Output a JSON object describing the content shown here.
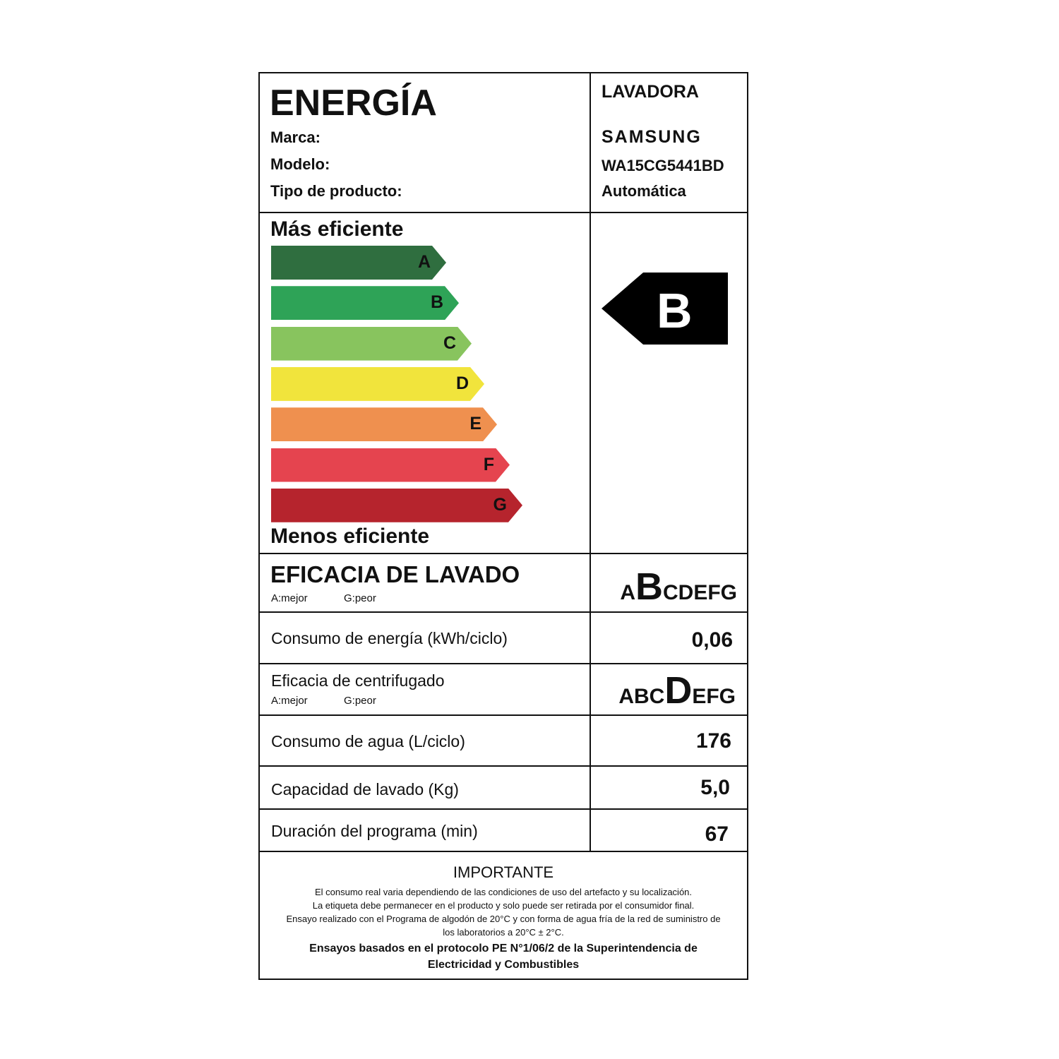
{
  "header": {
    "title": "ENERGÍA",
    "brand_label": "Marca:",
    "model_label": "Modelo:",
    "type_label": "Tipo de producto:",
    "product": "LAVADORA",
    "brand": "SAMSUNG",
    "model": "WA15CG5441BD",
    "type": "Automática"
  },
  "scale": {
    "top_label": "Más eficiente",
    "bottom_label": "Menos eficiente",
    "classes": [
      {
        "letter": "A",
        "color": "#2f6e3f"
      },
      {
        "letter": "B",
        "color": "#2ea357"
      },
      {
        "letter": "C",
        "color": "#88c45e"
      },
      {
        "letter": "D",
        "color": "#f1e43c"
      },
      {
        "letter": "E",
        "color": "#ef904f"
      },
      {
        "letter": "F",
        "color": "#e5444f"
      },
      {
        "letter": "G",
        "color": "#b6242d"
      }
    ],
    "rating": "B"
  },
  "wash_efficiency": {
    "label": "EFICACIA DE LAVADO",
    "best": "A:mejor",
    "worst": "G:peor",
    "before": "A",
    "selected": "B",
    "after": "CDEFG"
  },
  "energy": {
    "label": "Consumo de energía (kWh/ciclo)",
    "value": "0,06"
  },
  "spin": {
    "label": "Eficacia de centrifugado",
    "best": "A:mejor",
    "worst": "G:peor",
    "before": "ABC",
    "selected": "D",
    "after": "EFG"
  },
  "water": {
    "label": "Consumo de agua (L/ciclo)",
    "value": "176"
  },
  "capacity": {
    "label": "Capacidad de lavado (Kg)",
    "value": "5,0"
  },
  "duration": {
    "label": "Duración del programa (min)",
    "value": "67"
  },
  "important": {
    "title": "IMPORTANTE",
    "lines": [
      "El consumo real varia dependiendo de las condiciones de uso del artefacto y su localización.",
      "La etiqueta debe permanecer en el producto y solo puede ser retirada por el consumidor final.",
      "Ensayo realizado con el Programa de algodón de 20°C y con forma de agua fría de la red de suministro de",
      "los laboratorios a 20°C ± 2°C."
    ],
    "footer": [
      "Ensayos basados en el protocolo PE N°1/06/2 de la Superintendencia de",
      "Electricidad y Combustibles"
    ]
  }
}
